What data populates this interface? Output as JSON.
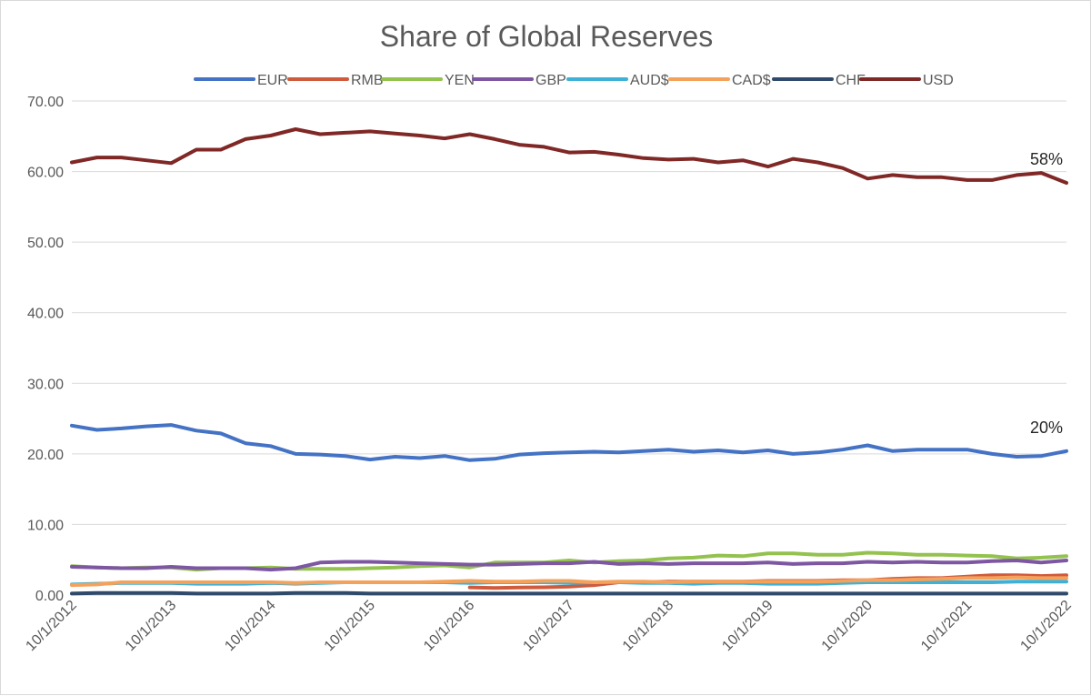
{
  "chart_data": {
    "type": "line",
    "title": "Share of Global Reserves",
    "xlabel": "",
    "ylabel": "",
    "ylim": [
      0,
      70
    ],
    "y_ticks": [
      "0.00",
      "10.00",
      "20.00",
      "30.00",
      "40.00",
      "50.00",
      "60.00",
      "70.00"
    ],
    "x_tick_labels": [
      "10/1/2012",
      "10/1/2013",
      "10/1/2014",
      "10/1/2015",
      "10/1/2016",
      "10/1/2017",
      "10/1/2018",
      "10/1/2019",
      "10/1/2020",
      "10/1/2021",
      "10/1/2022"
    ],
    "x_start": "2012-10-01",
    "x_end": "2022-10-01",
    "grid": "horizontal",
    "legend_position": "top",
    "dates": [
      "2012-10-01",
      "2013-01-01",
      "2013-04-01",
      "2013-07-01",
      "2013-10-01",
      "2014-01-01",
      "2014-04-01",
      "2014-07-01",
      "2014-10-01",
      "2015-01-01",
      "2015-04-01",
      "2015-07-01",
      "2015-10-01",
      "2016-01-01",
      "2016-04-01",
      "2016-07-01",
      "2016-10-01",
      "2017-01-01",
      "2017-04-01",
      "2017-07-01",
      "2017-10-01",
      "2018-01-01",
      "2018-04-01",
      "2018-07-01",
      "2018-10-01",
      "2019-01-01",
      "2019-04-01",
      "2019-07-01",
      "2019-10-01",
      "2020-01-01",
      "2020-04-01",
      "2020-07-01",
      "2020-10-01",
      "2021-01-01",
      "2021-04-01",
      "2021-07-01",
      "2021-10-01",
      "2022-01-01",
      "2022-04-01",
      "2022-07-01",
      "2022-10-01"
    ],
    "series": [
      {
        "name": "EUR",
        "color": "#4472c4",
        "values": [
          24.0,
          23.4,
          23.6,
          23.9,
          24.1,
          23.3,
          22.9,
          21.5,
          21.1,
          20.0,
          19.9,
          19.7,
          19.2,
          19.6,
          19.4,
          19.7,
          19.1,
          19.3,
          19.9,
          20.1,
          20.2,
          20.3,
          20.2,
          20.4,
          20.6,
          20.3,
          20.5,
          20.2,
          20.5,
          20.0,
          20.2,
          20.6,
          21.2,
          20.4,
          20.6,
          20.6,
          20.6,
          20.0,
          19.6,
          19.7,
          20.4
        ]
      },
      {
        "name": "RMB",
        "color": "#d05a3c",
        "values": [
          null,
          null,
          null,
          null,
          null,
          null,
          null,
          null,
          null,
          null,
          null,
          null,
          null,
          null,
          null,
          null,
          1.08,
          1.0,
          1.06,
          1.1,
          1.2,
          1.4,
          1.8,
          1.8,
          1.9,
          1.9,
          1.9,
          1.9,
          2.0,
          2.0,
          2.0,
          2.1,
          2.1,
          2.3,
          2.4,
          2.4,
          2.6,
          2.8,
          2.8,
          2.7,
          2.8
        ]
      },
      {
        "name": "YEN",
        "color": "#93c24f",
        "values": [
          4.1,
          3.9,
          3.8,
          3.9,
          3.9,
          3.6,
          3.8,
          3.8,
          3.9,
          3.7,
          3.7,
          3.7,
          3.8,
          3.9,
          4.1,
          4.2,
          3.9,
          4.6,
          4.6,
          4.6,
          4.9,
          4.6,
          4.8,
          4.9,
          5.2,
          5.3,
          5.6,
          5.5,
          5.9,
          5.9,
          5.7,
          5.7,
          6.0,
          5.9,
          5.7,
          5.7,
          5.6,
          5.5,
          5.2,
          5.3,
          5.5
        ]
      },
      {
        "name": "GBP",
        "color": "#7e57a3",
        "values": [
          4.0,
          3.9,
          3.8,
          3.8,
          4.0,
          3.8,
          3.8,
          3.8,
          3.6,
          3.8,
          4.6,
          4.7,
          4.7,
          4.6,
          4.5,
          4.4,
          4.3,
          4.3,
          4.4,
          4.5,
          4.5,
          4.7,
          4.4,
          4.5,
          4.4,
          4.5,
          4.5,
          4.5,
          4.6,
          4.4,
          4.5,
          4.5,
          4.7,
          4.6,
          4.7,
          4.6,
          4.6,
          4.8,
          4.9,
          4.6,
          4.9
        ]
      },
      {
        "name": "AUD$",
        "color": "#3fb1d6",
        "values": [
          1.5,
          1.6,
          1.7,
          1.7,
          1.7,
          1.6,
          1.6,
          1.6,
          1.7,
          1.6,
          1.7,
          1.8,
          1.8,
          1.8,
          1.8,
          1.8,
          1.7,
          1.8,
          1.8,
          1.8,
          1.7,
          1.8,
          1.8,
          1.7,
          1.7,
          1.6,
          1.7,
          1.7,
          1.6,
          1.6,
          1.6,
          1.7,
          1.8,
          1.8,
          1.8,
          1.8,
          1.8,
          1.8,
          1.9,
          1.9,
          1.9
        ]
      },
      {
        "name": "CAD$",
        "color": "#f4a25b",
        "values": [
          1.4,
          1.5,
          1.8,
          1.8,
          1.8,
          1.8,
          1.8,
          1.8,
          1.8,
          1.7,
          1.8,
          1.8,
          1.8,
          1.8,
          1.8,
          1.9,
          2.0,
          1.9,
          1.9,
          2.0,
          2.0,
          1.8,
          1.9,
          1.9,
          1.8,
          1.9,
          1.9,
          1.9,
          1.9,
          1.9,
          1.9,
          2.0,
          2.1,
          2.1,
          2.2,
          2.3,
          2.4,
          2.4,
          2.5,
          2.4,
          2.4
        ]
      },
      {
        "name": "CHF",
        "color": "#2f4a6a",
        "values": [
          0.2,
          0.3,
          0.3,
          0.3,
          0.3,
          0.2,
          0.2,
          0.2,
          0.2,
          0.3,
          0.3,
          0.3,
          0.2,
          0.2,
          0.2,
          0.2,
          0.2,
          0.2,
          0.2,
          0.2,
          0.2,
          0.2,
          0.2,
          0.2,
          0.2,
          0.2,
          0.2,
          0.2,
          0.2,
          0.2,
          0.2,
          0.2,
          0.2,
          0.2,
          0.2,
          0.2,
          0.2,
          0.2,
          0.2,
          0.2,
          0.2
        ]
      },
      {
        "name": "USD",
        "color": "#7f2826",
        "values": [
          61.3,
          62.0,
          62.0,
          61.6,
          61.2,
          63.1,
          63.1,
          64.6,
          65.1,
          66.0,
          65.3,
          65.5,
          65.7,
          65.4,
          65.1,
          64.7,
          65.3,
          64.6,
          63.8,
          63.5,
          62.7,
          62.8,
          62.4,
          61.9,
          61.7,
          61.8,
          61.3,
          61.6,
          60.7,
          61.8,
          61.3,
          60.5,
          59.0,
          59.5,
          59.2,
          59.2,
          58.8,
          58.8,
          59.5,
          59.8,
          58.4
        ]
      }
    ],
    "annotations": [
      {
        "text": "58%",
        "series": "USD"
      },
      {
        "text": "20%",
        "series": "EUR"
      }
    ]
  }
}
